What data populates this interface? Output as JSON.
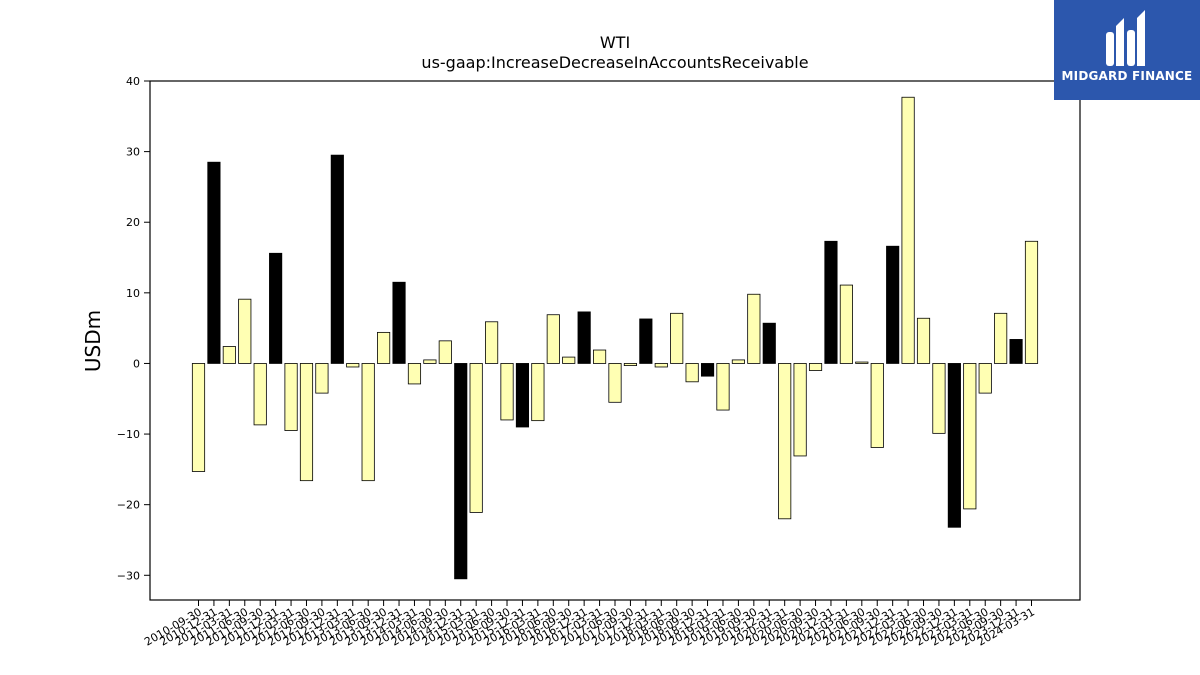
{
  "chart_data": {
    "type": "bar",
    "title": "WTI",
    "subtitle": "us-gaap:IncreaseDecreaseInAccountsReceivable",
    "ylabel": "USDm",
    "ylim": [
      -33.5,
      40
    ],
    "yticks": [
      -30,
      -20,
      -10,
      0,
      10,
      20,
      30,
      40
    ],
    "categories": [
      "2010-09-30",
      "2010-12-31",
      "2011-03-31",
      "2011-06-30",
      "2011-09-30",
      "2011-12-31",
      "2012-03-31",
      "2012-06-30",
      "2012-09-30",
      "2012-12-31",
      "2013-03-31",
      "2013-06-30",
      "2013-09-30",
      "2013-12-31",
      "2014-03-31",
      "2014-06-30",
      "2014-09-30",
      "2014-12-31",
      "2015-03-31",
      "2015-06-30",
      "2015-09-30",
      "2015-12-31",
      "2016-03-31",
      "2016-06-30",
      "2016-09-30",
      "2016-12-31",
      "2017-03-31",
      "2017-06-30",
      "2017-09-30",
      "2017-12-31",
      "2018-03-31",
      "2018-06-30",
      "2018-09-30",
      "2018-12-31",
      "2019-03-31",
      "2019-06-30",
      "2019-09-30",
      "2019-12-31",
      "2020-03-31",
      "2020-06-30",
      "2020-09-30",
      "2020-12-31",
      "2021-03-31",
      "2021-06-30",
      "2021-09-30",
      "2021-12-31",
      "2022-03-31",
      "2022-06-30",
      "2022-09-30",
      "2022-12-31",
      "2023-03-31",
      "2023-06-30",
      "2023-09-30",
      "2023-12-31",
      "2024-03-31"
    ],
    "values": [
      -15.3,
      28.5,
      2.4,
      9.1,
      -8.7,
      15.6,
      -9.5,
      -16.6,
      -4.2,
      29.5,
      -0.5,
      -16.6,
      4.4,
      11.5,
      -2.9,
      0.5,
      3.2,
      -30.5,
      -21.1,
      5.9,
      -8.0,
      -9.0,
      -8.1,
      6.9,
      0.9,
      7.3,
      1.9,
      -5.5,
      -0.3,
      6.3,
      -0.5,
      7.1,
      -2.6,
      -1.8,
      -6.6,
      0.5,
      9.8,
      5.7,
      -22.0,
      -13.1,
      -1.0,
      17.3,
      11.1,
      0.2,
      -11.9,
      16.6,
      37.7,
      6.4,
      -9.9,
      -23.2,
      -20.6,
      -4.2,
      7.1,
      3.4,
      17.3
    ],
    "colors": [
      "#ffffb3",
      "#000000",
      "#ffffb3",
      "#ffffb3",
      "#ffffb3",
      "#000000",
      "#ffffb3",
      "#ffffb3",
      "#ffffb3",
      "#000000",
      "#ffffb3",
      "#ffffb3",
      "#ffffb3",
      "#000000",
      "#ffffb3",
      "#ffffb3",
      "#ffffb3",
      "#000000",
      "#ffffb3",
      "#ffffb3",
      "#ffffb3",
      "#000000",
      "#ffffb3",
      "#ffffb3",
      "#ffffb3",
      "#000000",
      "#ffffb3",
      "#ffffb3",
      "#ffffb3",
      "#000000",
      "#ffffb3",
      "#ffffb3",
      "#ffffb3",
      "#000000",
      "#ffffb3",
      "#ffffb3",
      "#ffffb3",
      "#000000",
      "#ffffb3",
      "#ffffb3",
      "#ffffb3",
      "#000000",
      "#ffffb3",
      "#ffffb3",
      "#ffffb3",
      "#000000",
      "#ffffb3",
      "#ffffb3",
      "#ffffb3",
      "#000000",
      "#ffffb3",
      "#ffffb3",
      "#ffffb3",
      "#000000",
      "#ffffb3"
    ],
    "grid": false,
    "legend": "none"
  },
  "logo": {
    "text": "MIDGARD FINANCE",
    "background": "#2c57ad"
  }
}
